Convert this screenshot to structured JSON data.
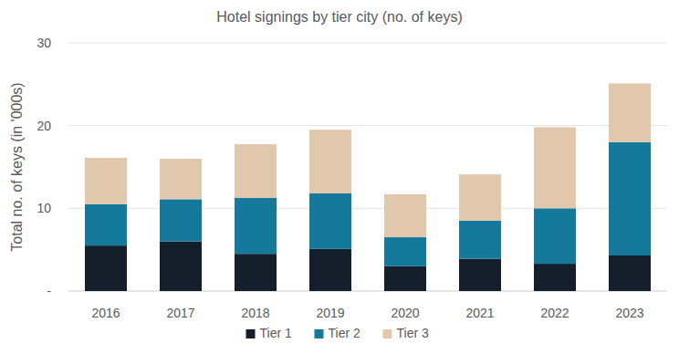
{
  "chart_data": {
    "type": "bar",
    "title": "Hotel signings by tier city (no. of keys)",
    "y_label": "Total no. of keys (in '000s)",
    "categories": [
      "2016",
      "2017",
      "2018",
      "2019",
      "2020",
      "2021",
      "2022",
      "2023"
    ],
    "series": [
      {
        "name": "Tier 1",
        "color": "#141f2b",
        "values": [
          5.5,
          6.0,
          4.5,
          5.1,
          3.0,
          3.9,
          3.3,
          4.3
        ]
      },
      {
        "name": "Tier 2",
        "color": "#14799b",
        "values": [
          5.0,
          5.1,
          6.75,
          6.7,
          3.5,
          4.6,
          6.7,
          13.7
        ]
      },
      {
        "name": "Tier 3",
        "color": "#e1c7ab",
        "values": [
          5.6,
          4.9,
          6.5,
          7.7,
          5.2,
          5.6,
          9.8,
          7.1
        ]
      }
    ],
    "ylim": [
      0,
      30
    ],
    "yticks": [
      {
        "value": 0,
        "label": "-"
      },
      10,
      20,
      30
    ],
    "stacked": true,
    "grid": true,
    "legend": "bottom"
  }
}
